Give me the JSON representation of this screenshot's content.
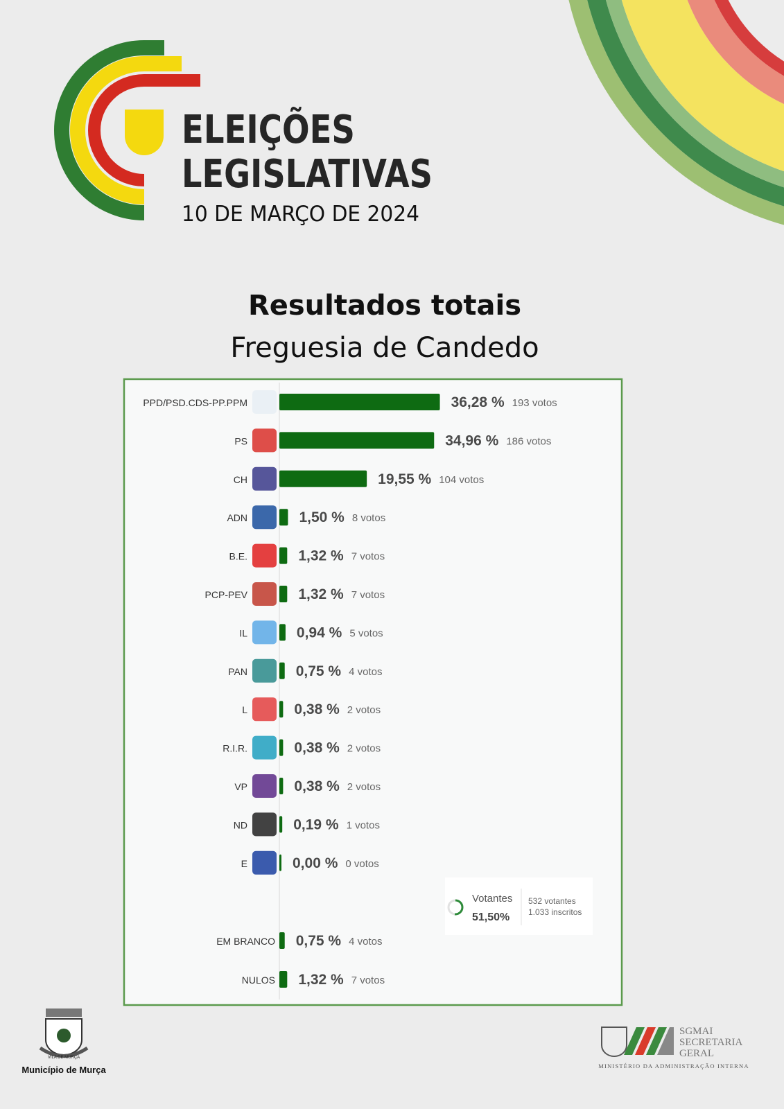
{
  "header": {
    "title_line1": "ELEIÇÕES",
    "title_line2": "LEGISLATIVAS",
    "date": "10 DE MARÇO DE 2024",
    "heading": "Resultados totais",
    "subheading": "Freguesia de Candedo"
  },
  "chart_data": {
    "type": "bar",
    "orientation": "horizontal",
    "color": "#0e6b12",
    "categories": [
      "PPD/PSD.CDS-PP.PPM",
      "PS",
      "CH",
      "ADN",
      "B.E.",
      "PCP-PEV",
      "IL",
      "PAN",
      "L",
      "R.I.R.",
      "VP",
      "ND",
      "E",
      "EM BRANCO",
      "NULOS"
    ],
    "values": [
      36.28,
      34.96,
      19.55,
      1.5,
      1.32,
      1.32,
      0.94,
      0.75,
      0.38,
      0.38,
      0.38,
      0.19,
      0.0,
      0.75,
      1.32
    ],
    "value_labels": [
      "36,28 %",
      "34,96 %",
      "19,55 %",
      "1,50 %",
      "1,32 %",
      "1,32 %",
      "0,94 %",
      "0,75 %",
      "0,38 %",
      "0,38 %",
      "0,38 %",
      "0,19 %",
      "0,00 %",
      "0,75 %",
      "1,32 %"
    ],
    "vote_labels": [
      "193 votos",
      "186 votos",
      "104 votos",
      "8 votos",
      "7 votos",
      "7 votos",
      "5 votos",
      "4 votos",
      "2 votos",
      "2 votos",
      "2 votos",
      "1 votos",
      "0 votos",
      "4 votos",
      "7 votos"
    ]
  },
  "turnout": {
    "label": "Votantes",
    "value": 51.5,
    "value_label": "51,50%",
    "voters": "532 votantes",
    "registered": "1.033 inscritos"
  },
  "footer": {
    "municipality": "Município de Murça",
    "crest_text": "VILA DE MURÇA",
    "org_line1": "SGMAI",
    "org_line2": "SECRETARIA",
    "org_line3": "GERAL",
    "ministry": "MINISTÉRIO DA ADMINISTRAÇÃO INTERNA"
  }
}
